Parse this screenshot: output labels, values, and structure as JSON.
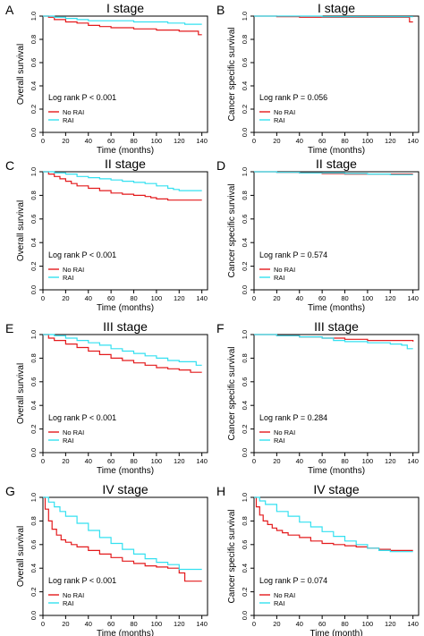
{
  "colors": {
    "no_rai": "#e31a1c",
    "rai": "#33e0f0",
    "axis": "#000000"
  },
  "chart_data": [
    {
      "type": "line",
      "panel_letter": "A",
      "title": "I stage",
      "xlabel": "Time (months)",
      "ylabel": "Overall survival",
      "xlim": [
        0,
        145
      ],
      "ylim": [
        0,
        1.0
      ],
      "xticks": [
        0,
        20,
        40,
        60,
        80,
        100,
        120,
        140
      ],
      "yticks": [
        0.0,
        0.2,
        0.4,
        0.6,
        0.8,
        1.0
      ],
      "pvalue_text": "Log rank P < 0.001",
      "legend_position": "bottom-left",
      "series": [
        {
          "name": "No RAI",
          "x": [
            0,
            5,
            10,
            20,
            30,
            40,
            50,
            60,
            70,
            80,
            90,
            100,
            110,
            120,
            130,
            135,
            137,
            140
          ],
          "y": [
            1.0,
            0.99,
            0.97,
            0.95,
            0.94,
            0.92,
            0.91,
            0.9,
            0.9,
            0.89,
            0.89,
            0.88,
            0.88,
            0.87,
            0.87,
            0.87,
            0.84,
            0.84
          ]
        },
        {
          "name": "RAI",
          "x": [
            0,
            10,
            20,
            30,
            40,
            50,
            60,
            70,
            80,
            90,
            100,
            110,
            120,
            125,
            130,
            140
          ],
          "y": [
            1.0,
            0.99,
            0.98,
            0.97,
            0.96,
            0.96,
            0.96,
            0.96,
            0.95,
            0.95,
            0.95,
            0.94,
            0.94,
            0.93,
            0.93,
            0.93
          ]
        }
      ]
    },
    {
      "type": "line",
      "panel_letter": "B",
      "title": "I stage",
      "xlabel": "Time (months)",
      "ylabel": "Cancer specific survival",
      "xlim": [
        0,
        145
      ],
      "ylim": [
        0,
        1.0
      ],
      "xticks": [
        0,
        20,
        40,
        60,
        80,
        100,
        120,
        140
      ],
      "yticks": [
        0.0,
        0.2,
        0.4,
        0.6,
        0.8,
        1.0
      ],
      "pvalue_text": "Log rank P = 0.056",
      "legend_position": "bottom-left",
      "series": [
        {
          "name": "No RAI",
          "x": [
            0,
            20,
            40,
            60,
            80,
            100,
            120,
            135,
            137,
            140
          ],
          "y": [
            1.0,
            0.995,
            0.99,
            0.99,
            0.99,
            0.99,
            0.99,
            0.99,
            0.95,
            0.95
          ]
        },
        {
          "name": "RAI",
          "x": [
            0,
            20,
            40,
            60,
            80,
            100,
            120,
            140
          ],
          "y": [
            1.0,
            1.0,
            1.0,
            0.995,
            0.995,
            0.995,
            0.995,
            0.995
          ]
        }
      ]
    },
    {
      "type": "line",
      "panel_letter": "C",
      "title": "II stage",
      "xlabel": "Time (months)",
      "ylabel": "Overall survival",
      "xlim": [
        0,
        145
      ],
      "ylim": [
        0,
        1.0
      ],
      "xticks": [
        0,
        20,
        40,
        60,
        80,
        100,
        120,
        140
      ],
      "yticks": [
        0.0,
        0.2,
        0.4,
        0.6,
        0.8,
        1.0
      ],
      "pvalue_text": "Log rank P < 0.001",
      "legend_position": "bottom-left",
      "series": [
        {
          "name": "No RAI",
          "x": [
            0,
            5,
            10,
            15,
            20,
            25,
            30,
            40,
            50,
            60,
            70,
            80,
            90,
            95,
            100,
            110,
            120,
            140
          ],
          "y": [
            1.0,
            0.98,
            0.96,
            0.94,
            0.92,
            0.9,
            0.88,
            0.86,
            0.84,
            0.82,
            0.81,
            0.8,
            0.79,
            0.78,
            0.77,
            0.76,
            0.76,
            0.76
          ]
        },
        {
          "name": "RAI",
          "x": [
            0,
            10,
            20,
            30,
            40,
            50,
            60,
            70,
            80,
            90,
            100,
            110,
            115,
            120,
            140
          ],
          "y": [
            1.0,
            0.99,
            0.98,
            0.96,
            0.95,
            0.94,
            0.93,
            0.92,
            0.91,
            0.9,
            0.88,
            0.86,
            0.85,
            0.84,
            0.84
          ]
        }
      ]
    },
    {
      "type": "line",
      "panel_letter": "D",
      "title": "II stage",
      "xlabel": "Time (months)",
      "ylabel": "Cancer specific survival",
      "xlim": [
        0,
        145
      ],
      "ylim": [
        0,
        1.0
      ],
      "xticks": [
        0,
        20,
        40,
        60,
        80,
        100,
        120,
        140
      ],
      "yticks": [
        0.0,
        0.2,
        0.4,
        0.6,
        0.8,
        1.0
      ],
      "pvalue_text": "Log rank P = 0.574",
      "legend_position": "bottom-left",
      "series": [
        {
          "name": "No RAI",
          "x": [
            0,
            20,
            40,
            60,
            80,
            100,
            120,
            140
          ],
          "y": [
            1.0,
            0.995,
            0.99,
            0.985,
            0.98,
            0.98,
            0.98,
            0.98
          ]
        },
        {
          "name": "RAI",
          "x": [
            0,
            20,
            40,
            60,
            80,
            100,
            120,
            140
          ],
          "y": [
            1.0,
            0.995,
            0.99,
            0.99,
            0.985,
            0.98,
            0.975,
            0.975
          ]
        }
      ]
    },
    {
      "type": "line",
      "panel_letter": "E",
      "title": "III stage",
      "xlabel": "Time (months)",
      "ylabel": "Overall survival",
      "xlim": [
        0,
        145
      ],
      "ylim": [
        0,
        1.0
      ],
      "xticks": [
        0,
        20,
        40,
        60,
        80,
        100,
        120,
        140
      ],
      "yticks": [
        0.0,
        0.2,
        0.4,
        0.6,
        0.8,
        1.0
      ],
      "pvalue_text": "Log rank P < 0.001",
      "legend_position": "bottom-left",
      "series": [
        {
          "name": "No RAI",
          "x": [
            0,
            5,
            10,
            20,
            30,
            40,
            50,
            60,
            70,
            80,
            90,
            100,
            110,
            120,
            130,
            140
          ],
          "y": [
            1.0,
            0.97,
            0.95,
            0.92,
            0.89,
            0.86,
            0.83,
            0.8,
            0.78,
            0.76,
            0.74,
            0.72,
            0.71,
            0.7,
            0.68,
            0.68
          ]
        },
        {
          "name": "RAI",
          "x": [
            0,
            10,
            20,
            30,
            40,
            50,
            60,
            70,
            80,
            90,
            100,
            110,
            120,
            130,
            135,
            140
          ],
          "y": [
            1.0,
            0.99,
            0.97,
            0.95,
            0.93,
            0.91,
            0.88,
            0.86,
            0.84,
            0.82,
            0.8,
            0.78,
            0.77,
            0.77,
            0.74,
            0.74
          ]
        }
      ]
    },
    {
      "type": "line",
      "panel_letter": "F",
      "title": "III stage",
      "xlabel": "Time (months)",
      "ylabel": "Cancer specific survival",
      "xlim": [
        0,
        145
      ],
      "ylim": [
        0,
        1.0
      ],
      "xticks": [
        0,
        20,
        40,
        60,
        80,
        100,
        120,
        140
      ],
      "yticks": [
        0.0,
        0.2,
        0.4,
        0.6,
        0.8,
        1.0
      ],
      "pvalue_text": "Log rank P = 0.284",
      "legend_position": "bottom-left",
      "series": [
        {
          "name": "No RAI",
          "x": [
            0,
            20,
            40,
            60,
            80,
            100,
            120,
            140
          ],
          "y": [
            1.0,
            0.99,
            0.98,
            0.97,
            0.96,
            0.95,
            0.95,
            0.94
          ]
        },
        {
          "name": "RAI",
          "x": [
            0,
            20,
            40,
            60,
            70,
            80,
            100,
            120,
            130,
            135,
            140
          ],
          "y": [
            1.0,
            0.99,
            0.98,
            0.97,
            0.95,
            0.94,
            0.93,
            0.92,
            0.91,
            0.88,
            0.88
          ]
        }
      ]
    },
    {
      "type": "line",
      "panel_letter": "G",
      "title": "IV stage",
      "xlabel": "Time (months)",
      "ylabel": "Overall survival",
      "xlim": [
        0,
        145
      ],
      "ylim": [
        0,
        1.0
      ],
      "xticks": [
        0,
        20,
        40,
        60,
        80,
        100,
        120,
        140
      ],
      "yticks": [
        0.0,
        0.2,
        0.4,
        0.6,
        0.8,
        1.0
      ],
      "pvalue_text": "Log rank P < 0.001",
      "legend_position": "bottom-left",
      "series": [
        {
          "name": "No RAI",
          "x": [
            0,
            2,
            5,
            8,
            12,
            16,
            20,
            25,
            30,
            40,
            50,
            60,
            70,
            80,
            90,
            100,
            110,
            120,
            125,
            140
          ],
          "y": [
            1.0,
            0.9,
            0.8,
            0.73,
            0.68,
            0.64,
            0.62,
            0.6,
            0.58,
            0.55,
            0.52,
            0.49,
            0.46,
            0.44,
            0.42,
            0.41,
            0.4,
            0.36,
            0.29,
            0.29
          ]
        },
        {
          "name": "RAI",
          "x": [
            0,
            5,
            10,
            15,
            20,
            30,
            40,
            50,
            60,
            70,
            80,
            90,
            100,
            110,
            120,
            140
          ],
          "y": [
            1.0,
            0.96,
            0.92,
            0.88,
            0.84,
            0.78,
            0.72,
            0.66,
            0.61,
            0.56,
            0.52,
            0.48,
            0.45,
            0.43,
            0.39,
            0.39
          ]
        }
      ]
    },
    {
      "type": "line",
      "panel_letter": "H",
      "title": "IV stage",
      "xlabel": "Time (month)",
      "ylabel": "Cancer specific survival",
      "xlim": [
        0,
        145
      ],
      "ylim": [
        0,
        1.0
      ],
      "xticks": [
        0,
        20,
        40,
        60,
        80,
        100,
        120,
        140
      ],
      "yticks": [
        0.0,
        0.2,
        0.4,
        0.6,
        0.8,
        1.0
      ],
      "pvalue_text": "Log rank P = 0.074",
      "legend_position": "bottom-left",
      "series": [
        {
          "name": "No RAI",
          "x": [
            0,
            2,
            5,
            8,
            12,
            16,
            20,
            25,
            30,
            40,
            50,
            60,
            70,
            80,
            90,
            100,
            110,
            120,
            140
          ],
          "y": [
            1.0,
            0.92,
            0.85,
            0.8,
            0.77,
            0.74,
            0.72,
            0.7,
            0.68,
            0.66,
            0.63,
            0.61,
            0.6,
            0.59,
            0.58,
            0.57,
            0.56,
            0.55,
            0.55
          ]
        },
        {
          "name": "RAI",
          "x": [
            0,
            5,
            10,
            20,
            30,
            40,
            50,
            60,
            70,
            80,
            90,
            100,
            110,
            120,
            140
          ],
          "y": [
            1.0,
            0.97,
            0.94,
            0.88,
            0.84,
            0.79,
            0.75,
            0.71,
            0.67,
            0.63,
            0.6,
            0.57,
            0.55,
            0.54,
            0.54
          ]
        }
      ]
    }
  ]
}
